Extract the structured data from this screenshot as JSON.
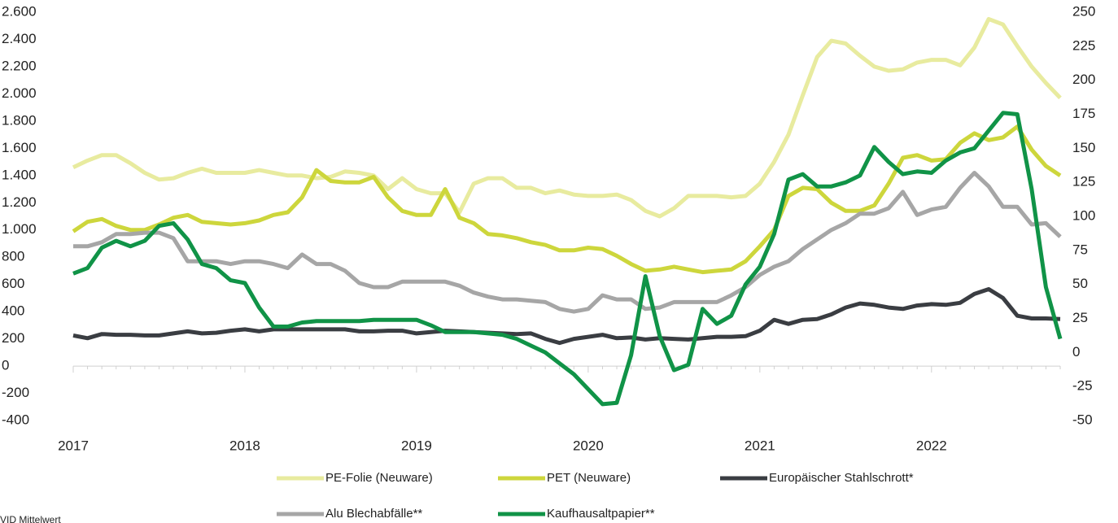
{
  "chart_data": {
    "type": "line",
    "categories": [
      "2017",
      null,
      null,
      null,
      null,
      null,
      null,
      null,
      null,
      null,
      null,
      null,
      "2018",
      null,
      null,
      null,
      null,
      null,
      null,
      null,
      null,
      null,
      null,
      null,
      "2019",
      null,
      null,
      null,
      null,
      null,
      null,
      null,
      null,
      null,
      null,
      null,
      "2020",
      null,
      null,
      null,
      null,
      null,
      null,
      null,
      null,
      null,
      null,
      null,
      "2021",
      null,
      null,
      null,
      null,
      null,
      null,
      null,
      null,
      null,
      null,
      null,
      "2022",
      null,
      null,
      null,
      null,
      null,
      null,
      null,
      null,
      null
    ],
    "series": [
      {
        "name": "PE-Folie (Neuware)",
        "color": "#e8eb9f",
        "values": [
          1460,
          1510,
          1550,
          1550,
          1490,
          1420,
          1370,
          1380,
          1420,
          1450,
          1420,
          1420,
          1420,
          1440,
          1420,
          1400,
          1400,
          1380,
          1390,
          1430,
          1420,
          1400,
          1300,
          1380,
          1300,
          1270,
          1270,
          1130,
          1340,
          1380,
          1380,
          1310,
          1310,
          1270,
          1290,
          1260,
          1250,
          1250,
          1260,
          1220,
          1140,
          1100,
          1160,
          1250,
          1250,
          1250,
          1240,
          1250,
          1340,
          1500,
          1700,
          1990,
          2270,
          2390,
          2370,
          2280,
          2200,
          2170,
          2180,
          2230,
          2250,
          2250,
          2210,
          2340,
          2550,
          2510,
          2350,
          2200,
          2080,
          1970
        ]
      },
      {
        "name": "PET (Neuware)",
        "color": "#cdd63c",
        "values": [
          990,
          1060,
          1080,
          1030,
          1000,
          1000,
          1040,
          1090,
          1110,
          1060,
          1050,
          1040,
          1050,
          1070,
          1110,
          1130,
          1240,
          1440,
          1360,
          1350,
          1350,
          1390,
          1240,
          1140,
          1110,
          1110,
          1300,
          1090,
          1050,
          970,
          960,
          940,
          910,
          890,
          850,
          850,
          870,
          860,
          810,
          750,
          700,
          710,
          730,
          710,
          690,
          700,
          710,
          770,
          880,
          1000,
          1250,
          1310,
          1300,
          1200,
          1140,
          1140,
          1180,
          1340,
          1530,
          1550,
          1510,
          1520,
          1640,
          1710,
          1660,
          1680,
          1760,
          1590,
          1470,
          1400
        ]
      },
      {
        "name": "Europäischer Stahlschrott*",
        "color": "#3a3d42",
        "values": [
          225,
          205,
          235,
          230,
          230,
          225,
          225,
          240,
          255,
          240,
          245,
          260,
          270,
          255,
          270,
          270,
          270,
          270,
          270,
          270,
          255,
          255,
          260,
          260,
          240,
          250,
          260,
          255,
          250,
          245,
          240,
          235,
          240,
          200,
          170,
          200,
          215,
          230,
          205,
          210,
          195,
          205,
          200,
          195,
          205,
          215,
          215,
          220,
          260,
          340,
          310,
          340,
          345,
          380,
          430,
          460,
          450,
          430,
          420,
          445,
          455,
          450,
          465,
          530,
          565,
          500,
          370,
          350,
          350,
          345
        ]
      },
      {
        "name": "Alu Blechabfälle**",
        "color": "#a6a6a6",
        "values": [
          880,
          880,
          910,
          970,
          970,
          980,
          980,
          940,
          770,
          770,
          770,
          750,
          770,
          770,
          750,
          720,
          820,
          750,
          750,
          700,
          610,
          580,
          580,
          620,
          620,
          620,
          620,
          590,
          540,
          510,
          490,
          490,
          480,
          470,
          420,
          400,
          420,
          520,
          490,
          490,
          420,
          430,
          470,
          470,
          470,
          470,
          520,
          580,
          670,
          730,
          770,
          860,
          930,
          1000,
          1050,
          1120,
          1120,
          1160,
          1280,
          1110,
          1150,
          1170,
          1310,
          1420,
          1320,
          1170,
          1170,
          1040,
          1050,
          950
        ]
      },
      {
        "name": "Kaufhausaltpapier**",
        "color": "#109347",
        "axis": "y2",
        "values": [
          58,
          62,
          77,
          82,
          78,
          82,
          93,
          95,
          83,
          65,
          62,
          53,
          51,
          33,
          19,
          19,
          22,
          23,
          23,
          23,
          23,
          24,
          24,
          24,
          24,
          20,
          15,
          15,
          15,
          14,
          13,
          10,
          5,
          0,
          -8,
          -16,
          -27,
          -38,
          -37,
          -2,
          56,
          12,
          -13,
          -9,
          32,
          21,
          27,
          50,
          63,
          87,
          127,
          131,
          122,
          122,
          125,
          130,
          151,
          140,
          131,
          133,
          132,
          141,
          147,
          150,
          163,
          176,
          175,
          120,
          48,
          10
        ]
      }
    ],
    "ylim": [
      -400,
      2600
    ],
    "yticks": [
      {
        "value": -400,
        "label": "-400"
      },
      -200,
      0,
      200,
      400,
      600,
      800,
      {
        "value": 1000,
        "label": "1.000"
      },
      {
        "value": 1200,
        "label": "1.200"
      },
      {
        "value": 1400,
        "label": "1.400"
      },
      {
        "value": 1600,
        "label": "1.600"
      },
      {
        "value": 1800,
        "label": "1.800"
      },
      {
        "value": 2000,
        "label": "2.000"
      },
      {
        "value": 2200,
        "label": "2.200"
      },
      {
        "value": 2400,
        "label": "2.400"
      },
      {
        "value": 2600,
        "label": "2.600"
      }
    ],
    "y2lim": [
      -50,
      250
    ],
    "y2ticks": [
      -50,
      -25,
      0,
      25,
      50,
      75,
      100,
      125,
      150,
      175,
      200,
      225,
      250
    ],
    "source": "VID Mittelwert"
  }
}
